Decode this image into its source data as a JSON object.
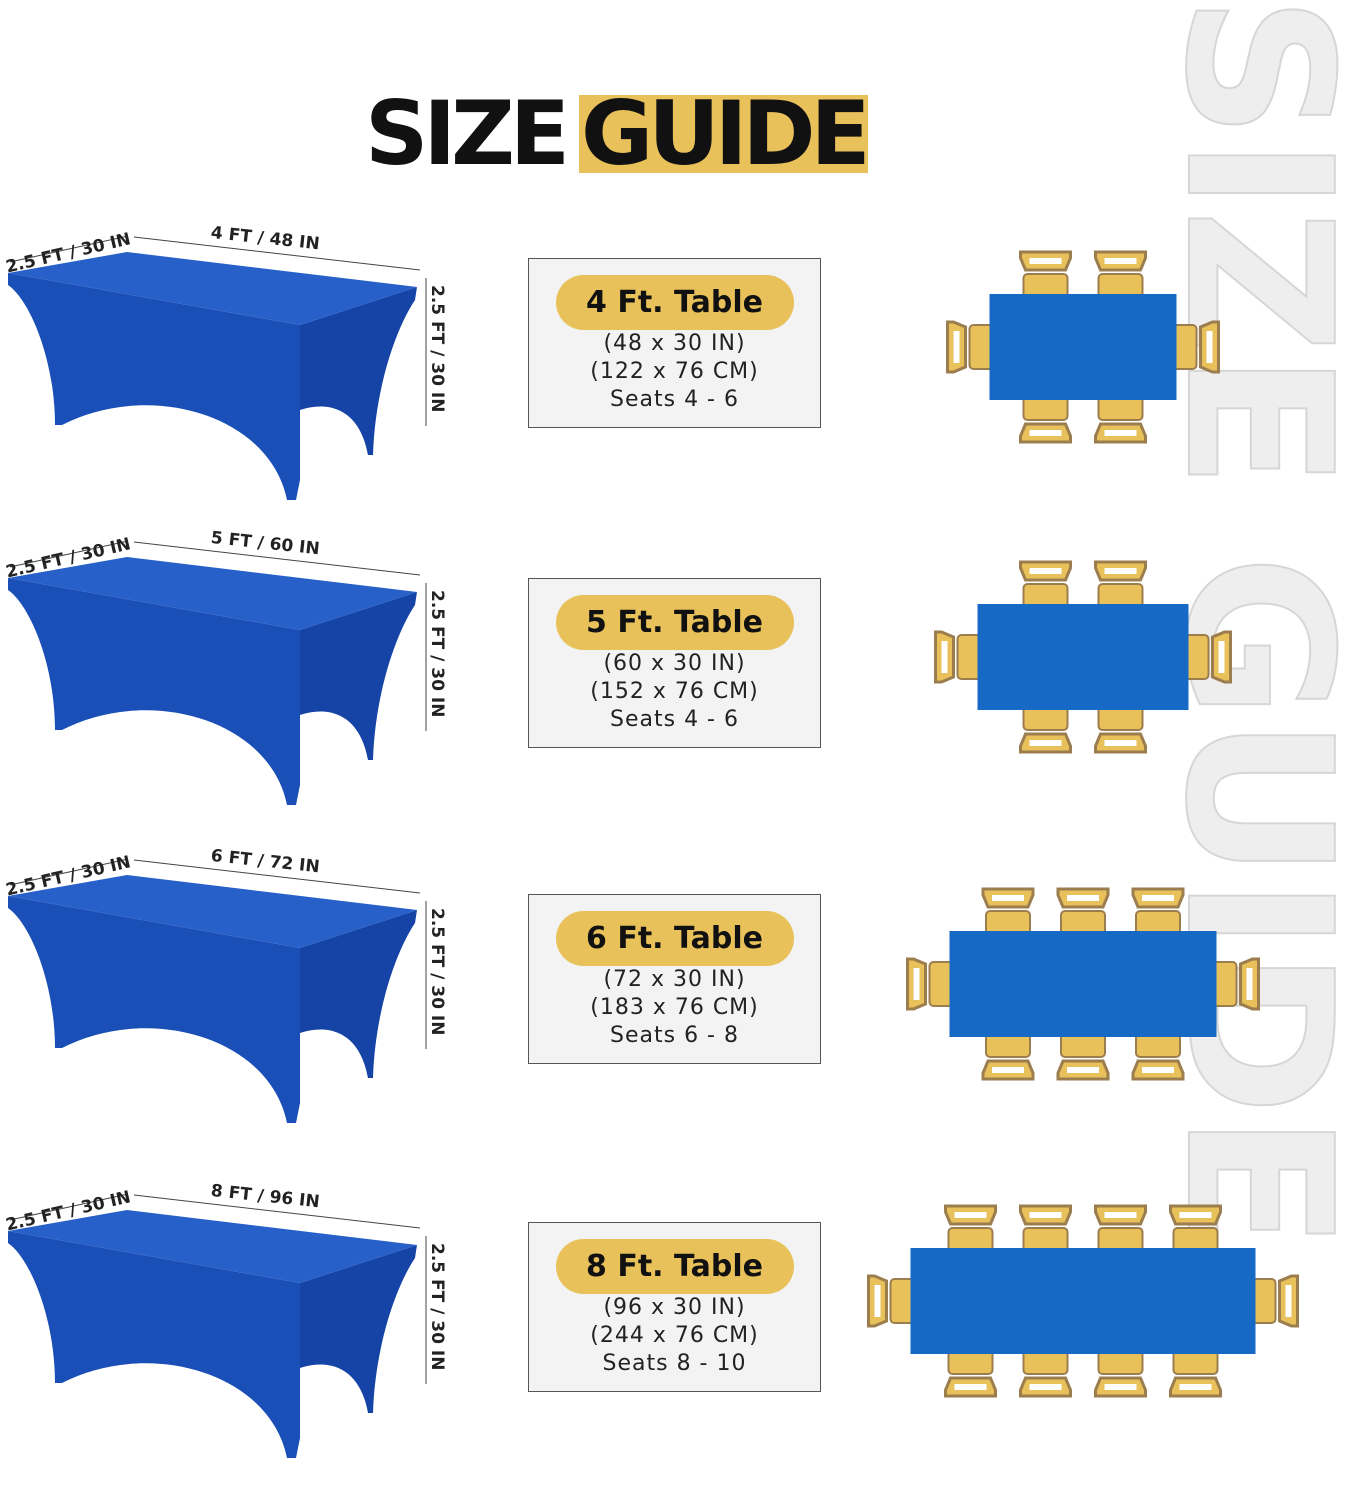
{
  "watermark": "SIZE GUIDE",
  "title": {
    "word1": "SIZE",
    "word2": "GUIDE"
  },
  "colors": {
    "cloth": "#1a4fb8",
    "cloth_top": "#2760c8",
    "table_top_view": "#1769c6",
    "chair": "#e9c15a",
    "chair_frame": "#9b7d4e",
    "highlight": "#e9c15a"
  },
  "rows": [
    {
      "depth_label": "2.5 FT / 30 IN",
      "length_label": "4 FT / 48 IN",
      "height_label": "2.5 FT / 30 IN",
      "name": "4 Ft. Table",
      "inches": "(48 x 30 IN)",
      "cm": "(122 x 76 CM)",
      "seats": "Seats 4 - 6",
      "chairs_per_side": 2
    },
    {
      "depth_label": "2.5 FT / 30 IN",
      "length_label": "5 FT / 60 IN",
      "height_label": "2.5 FT / 30 IN",
      "name": "5 Ft. Table",
      "inches": "(60 x 30 IN)",
      "cm": "(152 x 76 CM)",
      "seats": "Seats 4 - 6",
      "chairs_per_side": 2
    },
    {
      "depth_label": "2.5 FT / 30 IN",
      "length_label": "6 FT / 72 IN",
      "height_label": "2.5 FT / 30 IN",
      "name": "6 Ft. Table",
      "inches": "(72 x 30 IN)",
      "cm": "(183 x 76 CM)",
      "seats": "Seats 6 - 8",
      "chairs_per_side": 3
    },
    {
      "depth_label": "2.5 FT / 30 IN",
      "length_label": "8 FT / 96 IN",
      "height_label": "2.5 FT / 30 IN",
      "name": "8 Ft. Table",
      "inches": "(96 x 30 IN)",
      "cm": "(244 x 76 CM)",
      "seats": "Seats 8 - 10",
      "chairs_per_side": 4
    }
  ]
}
